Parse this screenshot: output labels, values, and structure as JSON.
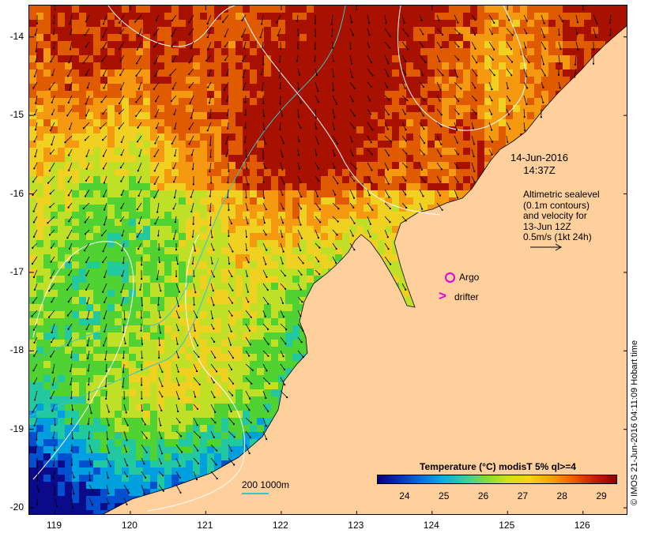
{
  "map": {
    "lon_range": [
      118.66,
      126.6
    ],
    "lat_range": [
      -20.1,
      -13.6
    ],
    "x_ticks": [
      "119",
      "120",
      "121",
      "122",
      "123",
      "124",
      "125",
      "126"
    ],
    "y_ticks": [
      "-14",
      "-15",
      "-16",
      "-17",
      "-18",
      "-19",
      "-20"
    ],
    "x_tick_values": [
      119,
      120,
      121,
      122,
      123,
      124,
      125,
      126
    ],
    "y_tick_values": [
      -14,
      -15,
      -16,
      -17,
      -18,
      -19,
      -20
    ],
    "land_color": "#ffcf9c",
    "sst_palette": [
      "#0a0a8a",
      "#0050d0",
      "#00a0e0",
      "#22c8a0",
      "#50d232",
      "#c0e028",
      "#f0d020",
      "#f59a10",
      "#e05a00",
      "#a81000"
    ]
  },
  "datetime": {
    "date": "14-Jun-2016",
    "time": "14:37Z"
  },
  "info": {
    "line1": "Altimetric sealevel",
    "line2": "(0.1m contours)",
    "line3": "and velocity for",
    "line4": "13-Jun 12Z",
    "line5": "0.5m/s (1kt 24h)"
  },
  "legend": {
    "argo_label": "Argo",
    "drifter_label": "drifter",
    "drifter_marker": ">",
    "marker_color": "#e000e0",
    "depth_label": "200  1000m",
    "depth_color": "#30c8c8"
  },
  "colorbar": {
    "title": "Temperature (°C) modisT 5% ql>=4",
    "ticks": [
      "24",
      "25",
      "26",
      "27",
      "28",
      "29"
    ],
    "tick_values": [
      24,
      25,
      26,
      27,
      28,
      29
    ],
    "range": [
      23.3,
      29.4
    ],
    "colors": [
      "#00007f",
      "#0030c0",
      "#0070e0",
      "#00b0e0",
      "#30d0a0",
      "#80dc40",
      "#d0e020",
      "#f8d018",
      "#f7a010",
      "#e86000",
      "#c02000",
      "#900000"
    ]
  },
  "credit": "© IMOS 21-Jun-2016 04:11:09 Hobart time"
}
